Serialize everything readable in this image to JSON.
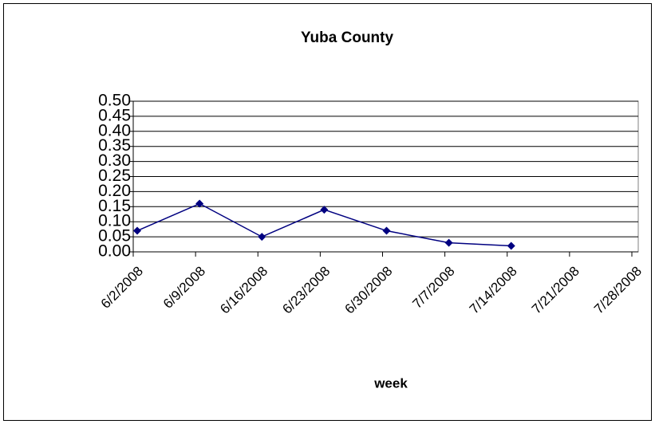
{
  "chart_data": {
    "type": "line",
    "title": "Yuba County",
    "x_label": "week",
    "categories": [
      "6/2/2008",
      "6/9/2008",
      "6/16/2008",
      "6/23/2008",
      "6/30/2008",
      "7/7/2008",
      "7/14/2008",
      "7/21/2008",
      "7/28/2008"
    ],
    "series": [
      {
        "color": "#000080",
        "values": [
          0.07,
          0.16,
          0.05,
          0.14,
          0.07,
          0.03,
          0.02,
          null,
          null
        ]
      }
    ],
    "ylim": [
      0,
      0.5
    ],
    "yticks": [
      {
        "value": 0,
        "label": "0.00"
      },
      {
        "value": 0.05,
        "label": "0.05"
      },
      {
        "value": 0.1,
        "label": "0.10"
      },
      {
        "value": 0.15,
        "label": "0.15"
      },
      {
        "value": 0.2,
        "label": "0.20"
      },
      {
        "value": 0.25,
        "label": "0.25"
      },
      {
        "value": 0.3,
        "label": "0.30"
      },
      {
        "value": 0.35,
        "label": "0.35"
      },
      {
        "value": 0.4,
        "label": "0.40"
      },
      {
        "value": 0.45,
        "label": "0.45"
      },
      {
        "value": 0.5,
        "label": "0.50"
      }
    ],
    "grid": true
  }
}
